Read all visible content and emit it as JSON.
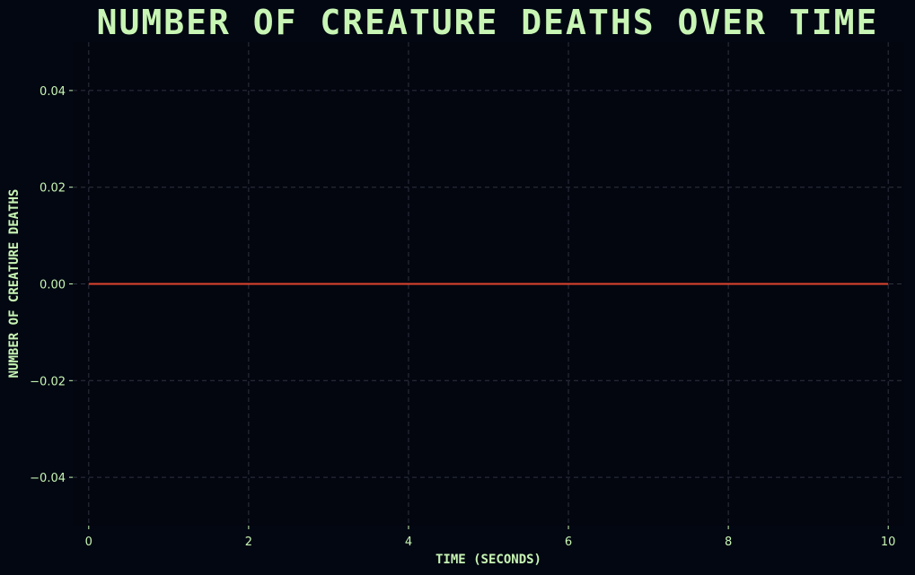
{
  "chart_data": {
    "type": "line",
    "title": "NUMBER OF CREATURE DEATHS OVER TIME",
    "xlabel": "TIME (SECONDS)",
    "ylabel": "NUMBER OF CREATURE DEATHS",
    "xlim": [
      -0.2,
      10.2
    ],
    "ylim": [
      -0.05,
      0.05
    ],
    "xticks": [
      0,
      2,
      4,
      6,
      8,
      10
    ],
    "yticks": [
      0.04,
      0.02,
      0.0,
      -0.02,
      -0.04
    ],
    "xtick_labels": [
      "0",
      "2",
      "4",
      "6",
      "8",
      "10"
    ],
    "ytick_labels": [
      "0.04",
      "0.02",
      "0.00",
      "−0.02",
      "−0.04"
    ],
    "grid": true,
    "series": [
      {
        "x": [
          0,
          10
        ],
        "y": [
          0,
          0
        ]
      }
    ]
  },
  "colors": {
    "background": "#020712",
    "plot_background": "#03060F",
    "text": "#C8F5B4",
    "grid": "#2E3340",
    "line": "#E0442E"
  }
}
